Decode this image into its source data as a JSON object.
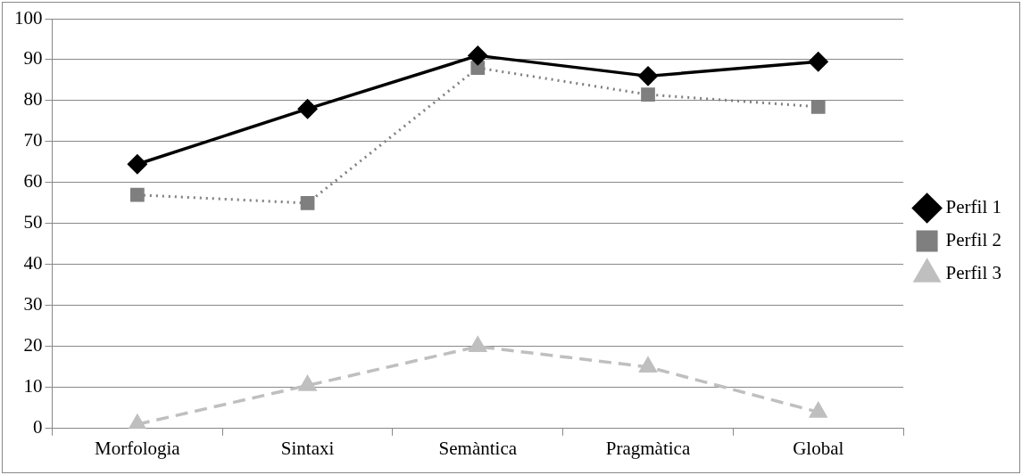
{
  "chart_data": {
    "type": "line",
    "categories": [
      "Morfologia",
      "Sintaxi",
      "Semàntica",
      "Pragmàtica",
      "Global"
    ],
    "series": [
      {
        "name": "Perfil 1",
        "color": "#000000",
        "marker": "diamond",
        "line_style": "solid",
        "values": [
          64.5,
          78,
          91,
          86,
          89.5
        ]
      },
      {
        "name": "Perfil 2",
        "color": "#7f7f7f",
        "marker": "square",
        "line_style": "dotted",
        "values": [
          57,
          55,
          88,
          81.5,
          78.5
        ]
      },
      {
        "name": "Perfil 3",
        "color": "#bfbfbf",
        "marker": "triangle",
        "line_style": "dashed",
        "values": [
          1,
          10.5,
          20,
          15,
          4
        ]
      }
    ],
    "ylim": [
      0,
      100
    ],
    "yticks": [
      0,
      10,
      20,
      30,
      40,
      50,
      60,
      70,
      80,
      90,
      100
    ],
    "grid": "y",
    "legend": "right"
  }
}
